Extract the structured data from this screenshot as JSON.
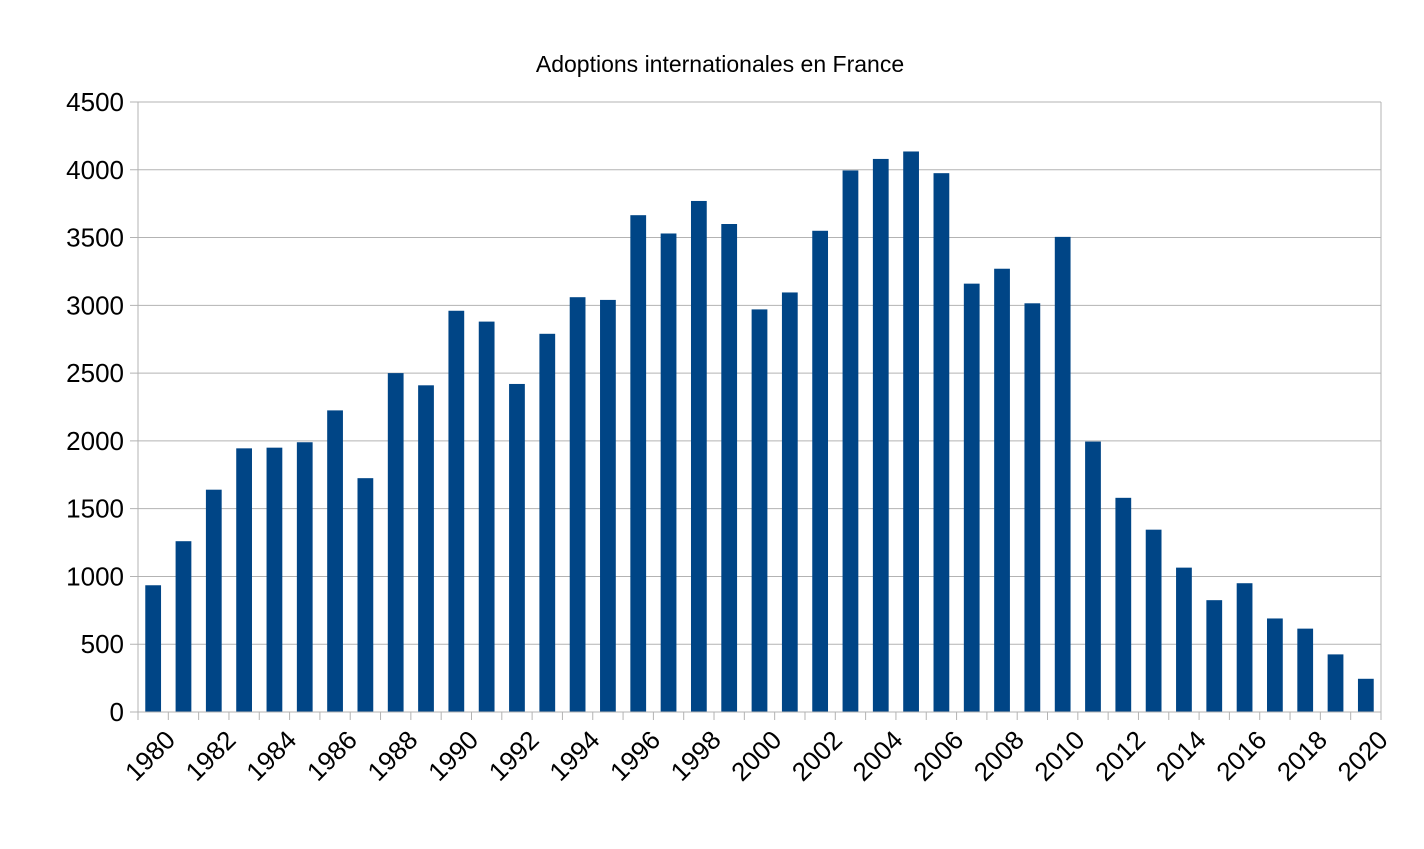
{
  "chart_data": {
    "type": "bar",
    "title": "Adoptions internationales en France",
    "xlabel": "",
    "ylabel": "",
    "ylim": [
      0,
      4500
    ],
    "yticks": [
      0,
      500,
      1000,
      1500,
      2000,
      2500,
      3000,
      3500,
      4000,
      4500
    ],
    "grid": true,
    "legend": "none",
    "bar_color": "#004586",
    "categories": [
      "1980",
      "1981",
      "1982",
      "1983",
      "1984",
      "1985",
      "1986",
      "1987",
      "1988",
      "1989",
      "1990",
      "1991",
      "1992",
      "1993",
      "1994",
      "1995",
      "1996",
      "1997",
      "1998",
      "1999",
      "2000",
      "2001",
      "2002",
      "2003",
      "2004",
      "2005",
      "2006",
      "2007",
      "2008",
      "2009",
      "2010",
      "2011",
      "2012",
      "2013",
      "2014",
      "2015",
      "2016",
      "2017",
      "2018",
      "2019",
      "2020"
    ],
    "xtick_labels": [
      "1980",
      "1982",
      "1984",
      "1986",
      "1988",
      "1990",
      "1992",
      "1994",
      "1996",
      "1998",
      "2000",
      "2002",
      "2004",
      "2006",
      "2008",
      "2010",
      "2012",
      "2014",
      "2016",
      "2018",
      "2020"
    ],
    "values": [
      935,
      1260,
      1640,
      1945,
      1950,
      1990,
      2225,
      1725,
      2500,
      2410,
      2960,
      2880,
      2420,
      2790,
      3060,
      3040,
      3665,
      3530,
      3770,
      3600,
      2970,
      3095,
      3550,
      3995,
      4080,
      4135,
      3975,
      3160,
      3270,
      3015,
      3505,
      1995,
      1580,
      1345,
      1065,
      825,
      950,
      690,
      615,
      425,
      245
    ]
  }
}
